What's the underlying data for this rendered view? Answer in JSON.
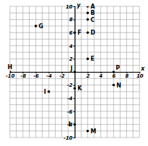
{
  "chart_data": {
    "type": "scatter",
    "x_label": "x",
    "y_label": "y",
    "labels": [
      "A",
      "B",
      "C",
      "D",
      "E",
      "F",
      "G",
      "H",
      "I",
      "J",
      "K",
      "L",
      "M",
      "N",
      "P"
    ],
    "x": [
      2,
      2,
      2,
      2,
      2,
      0,
      -6,
      -10,
      -4,
      0,
      0,
      0,
      2,
      6,
      6
    ],
    "values": [
      10,
      9,
      8,
      6,
      2,
      6,
      7,
      0,
      -3,
      0,
      -2.5,
      -8,
      -9,
      -2,
      0
    ],
    "xlim": [
      -10,
      10
    ],
    "ylim": [
      -10,
      10
    ],
    "xticks": [
      -10,
      -8,
      -6,
      -4,
      -2,
      2,
      4,
      6,
      8,
      10
    ],
    "yticks": [
      10,
      8,
      6,
      4,
      2,
      -2,
      -4,
      -6,
      -8,
      -10
    ],
    "grid": true,
    "color": "#000000",
    "marker": "circle"
  }
}
